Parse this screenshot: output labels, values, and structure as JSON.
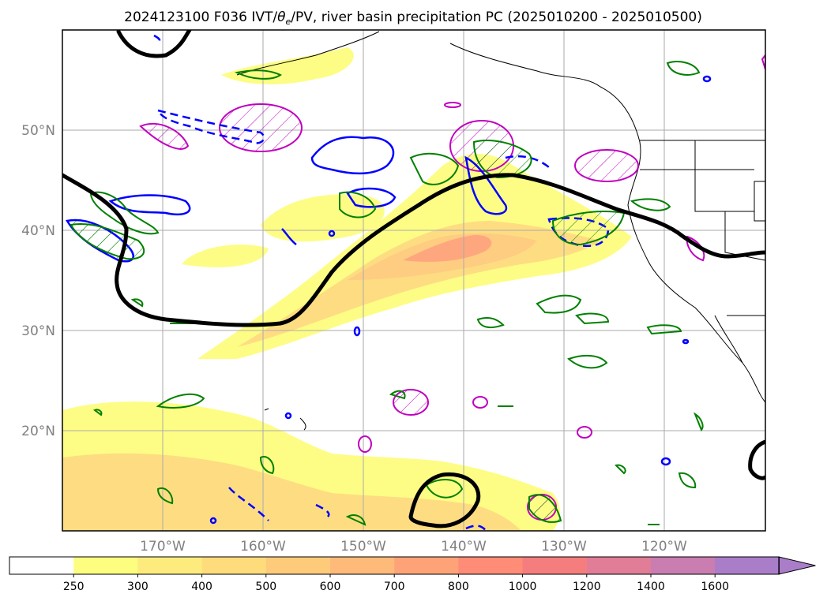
{
  "title": {
    "prefix": "2024123100 F036 IVT/",
    "theta": "θ",
    "theta_sub": "e",
    "suffix": "/PV, river basin precipitation PC (2025010200 - 2025010500)"
  },
  "map": {
    "projection": "equirectangular",
    "lon_range": [
      -180,
      -110
    ],
    "lat_range": [
      10,
      60
    ],
    "gridlines": true,
    "lat_ticks": [
      {
        "value": 20,
        "label": "20°N"
      },
      {
        "value": 30,
        "label": "30°N"
      },
      {
        "value": 40,
        "label": "40°N"
      },
      {
        "value": 50,
        "label": "50°N"
      }
    ],
    "lon_ticks": [
      {
        "value": -170,
        "label": "170°W"
      },
      {
        "value": -160,
        "label": "160°W"
      },
      {
        "value": -150,
        "label": "150°W"
      },
      {
        "value": -140,
        "label": "140°W"
      },
      {
        "value": -130,
        "label": "130°W"
      },
      {
        "value": -120,
        "label": "120°W"
      }
    ]
  },
  "colorbar": {
    "levels": [
      "250",
      "300",
      "400",
      "500",
      "600",
      "700",
      "800",
      "1000",
      "1200",
      "1400",
      "1600"
    ],
    "colors": [
      "#fdfd7f",
      "#fdec7d",
      "#fedc7c",
      "#fecb7b",
      "#feba79",
      "#fea378",
      "#fe8c77",
      "#f67d7d",
      "#e17d97",
      "#c97db0",
      "#aa7dc9"
    ],
    "extend": "max"
  },
  "colors": {
    "pv_contour": "#000000",
    "theta_e_contour": "#0000ff",
    "precip_contour": "#008000",
    "magenta_contour": "#c000c0",
    "grid": "#aaaaaa",
    "tick_label": "#808080"
  }
}
